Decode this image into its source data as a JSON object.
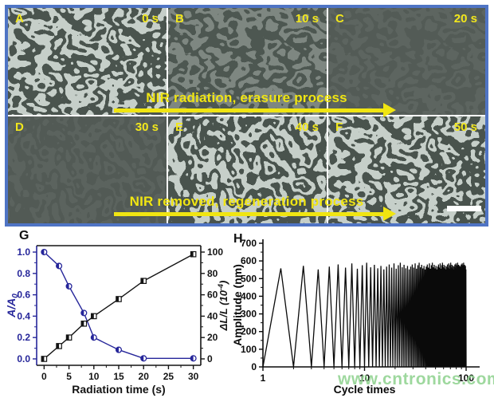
{
  "montage": {
    "border_color": "#4f74c4",
    "accent_yellow": "#f0e512",
    "row1_caption": "NIR radiation, erasure process",
    "row2_caption": "NIR removed, regeneration process",
    "scalebar": "white scale bar",
    "panels": [
      {
        "label": "A",
        "time": "0 s",
        "texture": "strong-wrinkles"
      },
      {
        "label": "B",
        "time": "10 s",
        "texture": "faint-wrinkles"
      },
      {
        "label": "C",
        "time": "20 s",
        "texture": "smooth"
      },
      {
        "label": "D",
        "time": "30 s",
        "texture": "smooth"
      },
      {
        "label": "E",
        "time": "40 s",
        "texture": "strong-wrinkles"
      },
      {
        "label": "F",
        "time": "50 s",
        "texture": "strong-wrinkles"
      }
    ]
  },
  "charts": {
    "g_label": "G",
    "h_label": "H"
  },
  "watermark": "www.cntronics.com",
  "chart_data": [
    {
      "type": "line",
      "panel": "G",
      "xlabel": "Radiation time (s)",
      "x_ticks": [
        0,
        5,
        10,
        15,
        20,
        25,
        30
      ],
      "xlim": [
        -1.5,
        31.5
      ],
      "left_axis": {
        "label": "A/A0",
        "label_main": "A/A",
        "label_sub": "0",
        "color": "#26269a",
        "ticks": [
          0.0,
          0.2,
          0.4,
          0.6,
          0.8,
          1.0
        ],
        "lim": [
          -0.06,
          1.06
        ]
      },
      "right_axis": {
        "label": "ΔL/L (10-4)",
        "label_pre": "ΔL/L (10",
        "label_sup": "-4",
        "label_post": ")",
        "color": "#141414",
        "ticks": [
          0,
          20,
          40,
          60,
          80,
          100
        ],
        "lim": [
          -6,
          106
        ]
      },
      "grid": false,
      "series": [
        {
          "name": "A/A0",
          "axis": "left",
          "color": "#26269a",
          "marker": "circle",
          "x": [
            0,
            3,
            5,
            8,
            10,
            15,
            20,
            30
          ],
          "y": [
            1.0,
            0.87,
            0.68,
            0.43,
            0.2,
            0.085,
            0.005,
            0.005
          ]
        },
        {
          "name": "dL/L",
          "axis": "right",
          "color": "#141414",
          "marker": "square",
          "x": [
            0,
            3,
            5,
            8,
            10,
            15,
            20,
            30
          ],
          "y": [
            0,
            12,
            20,
            33,
            40,
            56,
            73,
            98
          ]
        }
      ]
    },
    {
      "type": "line",
      "panel": "H",
      "xlabel": "Cycle times",
      "ylabel": "Amplitude (nm)",
      "x_scale": "log",
      "xlim": [
        1,
        100
      ],
      "x_ticks": [
        1,
        10,
        100
      ],
      "ylim": [
        0,
        700
      ],
      "y_ticks": [
        0,
        100,
        200,
        300,
        400,
        500,
        600,
        700
      ],
      "grid": false,
      "line_color": "#0a0a0a",
      "waveform": {
        "description": "triangular oscillation per cycle: amplitude 0 -> peak -> 0",
        "cycles": 99,
        "peaks_nm": [
          558,
          572,
          552,
          568,
          580,
          562,
          586,
          556,
          576,
          590,
          564,
          578,
          558,
          572,
          552,
          568,
          580,
          562,
          586,
          556,
          576,
          590,
          564,
          578,
          558,
          572,
          552,
          568,
          580,
          562,
          586,
          556,
          576,
          590,
          564,
          578,
          558,
          572,
          552,
          568,
          580,
          562,
          586,
          556,
          576,
          590,
          564,
          578,
          558,
          572,
          552,
          568,
          580,
          562,
          586,
          556,
          576,
          590,
          564,
          578,
          558,
          572,
          552,
          568,
          580,
          562,
          586,
          556,
          576,
          590,
          564,
          578,
          558,
          572,
          552,
          568,
          580,
          562,
          586,
          556,
          576,
          590,
          564,
          578,
          558,
          572,
          552,
          568,
          580,
          562,
          586,
          556,
          576,
          590,
          564,
          578,
          558,
          572,
          552
        ]
      }
    }
  ]
}
